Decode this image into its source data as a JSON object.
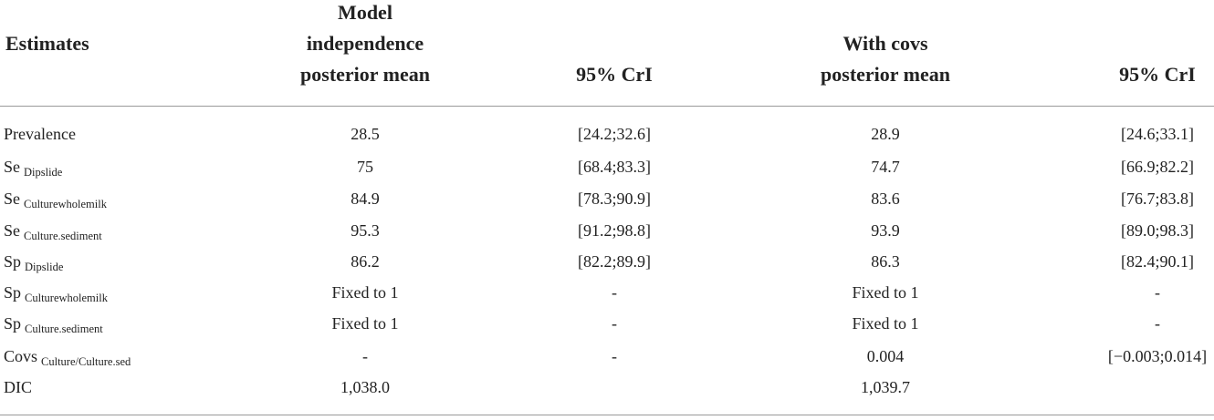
{
  "table": {
    "header": [
      [
        "Estimates"
      ],
      [
        "Model",
        "independence",
        "posterior mean"
      ],
      [
        "95% CrI"
      ],
      [
        "With covs",
        "posterior mean"
      ],
      [
        "95% CrI"
      ]
    ],
    "rows": [
      {
        "label": {
          "main": "Prevalence"
        },
        "cells": [
          "28.5",
          "[24.2;32.6]",
          "28.9",
          "[24.6;33.1]"
        ]
      },
      {
        "label": {
          "main": "Se",
          "sub": "Dipslide"
        },
        "cells": [
          "75",
          "[68.4;83.3]",
          "74.7",
          "[66.9;82.2]"
        ]
      },
      {
        "label": {
          "main": "Se",
          "sub": "Culturewholemilk"
        },
        "cells": [
          "84.9",
          "[78.3;90.9]",
          "83.6",
          "[76.7;83.8]"
        ]
      },
      {
        "label": {
          "main": "Se",
          "sub": "Culture.sediment"
        },
        "cells": [
          "95.3",
          "[91.2;98.8]",
          "93.9",
          "[89.0;98.3]"
        ]
      },
      {
        "label": {
          "main": "Sp",
          "sub": "Dipslide"
        },
        "cells": [
          "86.2",
          "[82.2;89.9]",
          "86.3",
          "[82.4;90.1]"
        ]
      },
      {
        "label": {
          "main": "Sp",
          "sub": "Culturewholemilk"
        },
        "cells": [
          "Fixed to 1",
          "-",
          "Fixed to 1",
          "-"
        ]
      },
      {
        "label": {
          "main": "Sp",
          "sub": "Culture.sediment"
        },
        "cells": [
          "Fixed to 1",
          "-",
          "Fixed to 1",
          "-"
        ]
      },
      {
        "label": {
          "main": "Covs",
          "sub": "Culture/Culture.sed"
        },
        "cells": [
          "-",
          "-",
          "0.004",
          "[−0.003;0.014]"
        ]
      },
      {
        "label": {
          "main": "DIC"
        },
        "cells": [
          "1,038.0",
          null,
          "1,039.7",
          null
        ]
      }
    ]
  }
}
